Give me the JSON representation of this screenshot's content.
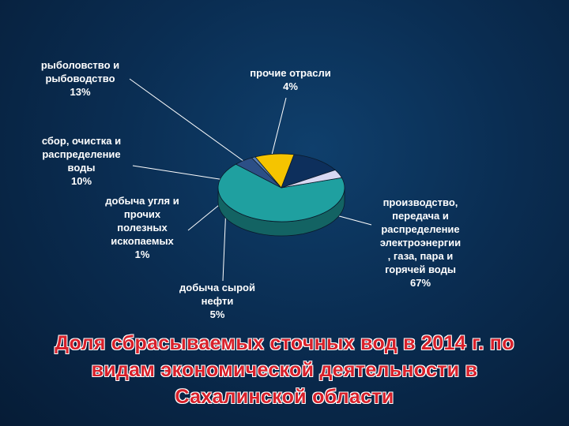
{
  "slide_title": "Доля сбрасываемых сточных вод в 2014 г. по\nвидам экономической деятельности в\nСахалинской области",
  "chart_data": {
    "type": "pie",
    "title": "Доля сбрасываемых сточных вод в 2014 г. по видам экономической деятельности в Сахалинской области",
    "slices": [
      {
        "label": "производство,\nпередача и\nраспределение\nэлектроэнергии\n, газа, пара и\nгорячей воды",
        "value": 67,
        "pct_text": "67%",
        "color": "#1fa0a0"
      },
      {
        "label": "добыча сырой\nнефти",
        "value": 5,
        "pct_text": "5%",
        "color": "#2c4f86"
      },
      {
        "label": "добыча угля и\nпрочих\nполезных\nископаемых",
        "value": 1,
        "pct_text": "1%",
        "color": "#5a7fb3"
      },
      {
        "label": "сбор, очистка и\nраспределение\nводы",
        "value": 10,
        "pct_text": "10%",
        "color": "#f5c400"
      },
      {
        "label": "рыболовство и\nрыбоводство",
        "value": 13,
        "pct_text": "13%",
        "color": "#0d2f5c"
      },
      {
        "label": "прочие отрасли",
        "value": 4,
        "pct_text": "4%",
        "color": "#d8d8f2"
      }
    ],
    "legend": "none",
    "style": "3d"
  }
}
